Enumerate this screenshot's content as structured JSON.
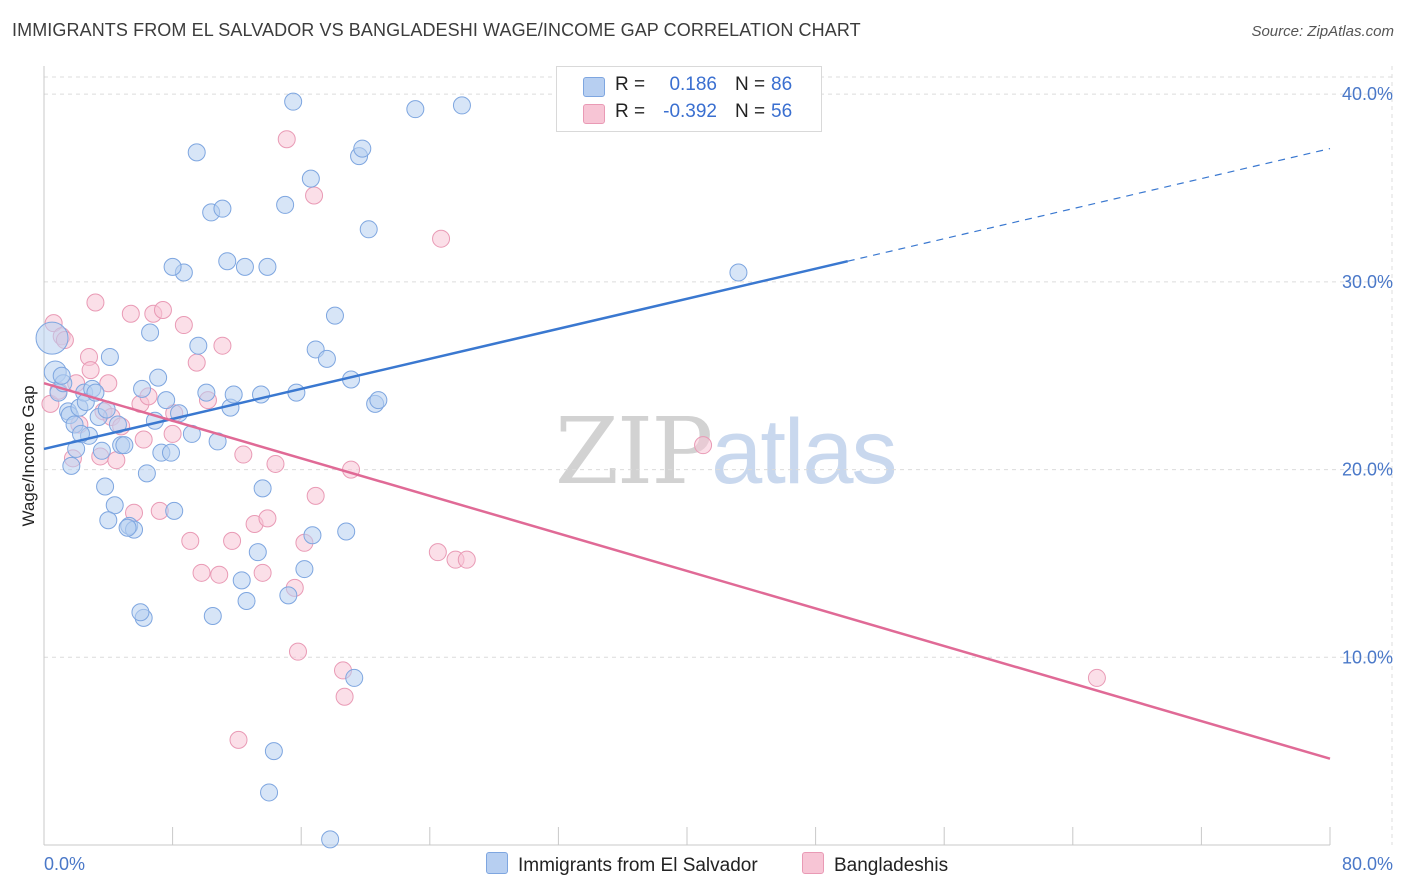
{
  "header": {
    "title": "IMMIGRANTS FROM EL SALVADOR VS BANGLADESHI WAGE/INCOME GAP CORRELATION CHART",
    "source": "Source: ZipAtlas.com"
  },
  "watermark": {
    "zip": "ZIP",
    "atlas": "atlas"
  },
  "legend_top": {
    "rows": [
      {
        "r_label": "R =",
        "r_value": "0.186",
        "n_label": "N =",
        "n_value": "86"
      },
      {
        "r_label": "R =",
        "r_value": "-0.392",
        "n_label": "N =",
        "n_value": "56"
      }
    ]
  },
  "legend_bottom": {
    "items": [
      {
        "label": "Immigrants from El Salvador"
      },
      {
        "label": "Bangladeshis"
      }
    ]
  },
  "colors": {
    "blue_fill": "#b7cff1",
    "blue_stroke": "#7ea6e0",
    "blue_line": "#3a78d0",
    "pink_fill": "#f7c5d5",
    "pink_stroke": "#e99ab5",
    "pink_line": "#e06a96",
    "grid": "#dcdcdc",
    "axis_text": "#4a78c8"
  },
  "chart_data": {
    "type": "scatter",
    "title": "IMMIGRANTS FROM EL SALVADOR VS BANGLADESHI WAGE/INCOME GAP CORRELATION CHART",
    "xlabel": "",
    "ylabel": "Wage/Income Gap",
    "xlim": [
      0,
      80
    ],
    "ylim": [
      0,
      41.5
    ],
    "x_ticks": [
      "0.0%",
      "80.0%"
    ],
    "y_ticks": [
      {
        "value": 10,
        "label": "10.0%"
      },
      {
        "value": 20,
        "label": "20.0%"
      },
      {
        "value": 30,
        "label": "30.0%"
      },
      {
        "value": 40,
        "label": "40.0%"
      }
    ],
    "grid": true,
    "legend_position": "top-center",
    "series": [
      {
        "name": "Immigrants from El Salvador",
        "color": "#7ea6e0",
        "r": 0.186,
        "n": 86,
        "trend": {
          "x": [
            0,
            50
          ],
          "y": [
            21.1,
            31.1
          ],
          "extended_to": [
            80,
            37.1
          ]
        },
        "points": [
          [
            0.5,
            27.0
          ],
          [
            0.7,
            25.2
          ],
          [
            0.9,
            24.1
          ],
          [
            1.2,
            24.6
          ],
          [
            1.5,
            23.1
          ],
          [
            1.6,
            22.9
          ],
          [
            1.9,
            22.4
          ],
          [
            1.7,
            20.2
          ],
          [
            2.0,
            21.1
          ],
          [
            2.2,
            23.3
          ],
          [
            2.5,
            24.1
          ],
          [
            2.6,
            23.6
          ],
          [
            2.8,
            21.8
          ],
          [
            3.0,
            24.3
          ],
          [
            3.2,
            24.1
          ],
          [
            3.4,
            22.8
          ],
          [
            3.6,
            21.0
          ],
          [
            3.9,
            23.2
          ],
          [
            4.1,
            26.0
          ],
          [
            4.4,
            18.1
          ],
          [
            4.6,
            22.4
          ],
          [
            4.8,
            21.3
          ],
          [
            5.0,
            21.3
          ],
          [
            5.3,
            17.0
          ],
          [
            5.6,
            16.8
          ],
          [
            6.1,
            24.3
          ],
          [
            6.4,
            19.8
          ],
          [
            6.6,
            27.3
          ],
          [
            6.9,
            22.6
          ],
          [
            7.1,
            24.9
          ],
          [
            7.3,
            20.9
          ],
          [
            7.6,
            23.7
          ],
          [
            7.9,
            20.9
          ],
          [
            8.1,
            17.8
          ],
          [
            8.4,
            23.0
          ],
          [
            8.7,
            30.5
          ],
          [
            8.0,
            30.8
          ],
          [
            9.2,
            21.9
          ],
          [
            9.6,
            26.6
          ],
          [
            9.5,
            36.9
          ],
          [
            10.1,
            24.1
          ],
          [
            10.4,
            33.7
          ],
          [
            10.5,
            12.2
          ],
          [
            10.8,
            21.5
          ],
          [
            11.1,
            33.9
          ],
          [
            11.4,
            31.1
          ],
          [
            11.6,
            23.3
          ],
          [
            11.8,
            24.0
          ],
          [
            12.3,
            14.1
          ],
          [
            12.5,
            30.8
          ],
          [
            12.6,
            13.0
          ],
          [
            13.3,
            15.6
          ],
          [
            13.5,
            24.0
          ],
          [
            13.6,
            19.0
          ],
          [
            13.9,
            30.8
          ],
          [
            14.3,
            5.0
          ],
          [
            14.0,
            2.8
          ],
          [
            15.0,
            34.1
          ],
          [
            15.2,
            13.3
          ],
          [
            15.5,
            39.6
          ],
          [
            15.7,
            24.1
          ],
          [
            16.2,
            14.7
          ],
          [
            16.6,
            35.5
          ],
          [
            16.7,
            16.5
          ],
          [
            16.9,
            26.4
          ],
          [
            17.6,
            25.9
          ],
          [
            17.8,
            0.3
          ],
          [
            18.1,
            28.2
          ],
          [
            18.8,
            16.7
          ],
          [
            19.1,
            24.8
          ],
          [
            19.3,
            8.9
          ],
          [
            19.6,
            36.7
          ],
          [
            19.8,
            37.1
          ],
          [
            20.2,
            32.8
          ],
          [
            20.6,
            23.5
          ],
          [
            20.8,
            23.7
          ],
          [
            23.1,
            39.2
          ],
          [
            26.0,
            39.4
          ],
          [
            43.2,
            30.5
          ],
          [
            4.0,
            17.3
          ],
          [
            5.2,
            16.9
          ],
          [
            6.2,
            12.1
          ],
          [
            1.1,
            25.0
          ],
          [
            2.3,
            21.9
          ],
          [
            3.8,
            19.1
          ],
          [
            6.0,
            12.4
          ]
        ]
      },
      {
        "name": "Bangladeshis",
        "color": "#e99ab5",
        "r": -0.392,
        "n": 56,
        "trend": {
          "x": [
            0,
            80
          ],
          "y": [
            24.6,
            4.6
          ]
        },
        "points": [
          [
            0.4,
            23.5
          ],
          [
            0.6,
            27.8
          ],
          [
            0.9,
            24.2
          ],
          [
            1.1,
            27.1
          ],
          [
            1.3,
            26.9
          ],
          [
            1.8,
            20.6
          ],
          [
            2.0,
            24.6
          ],
          [
            2.2,
            22.4
          ],
          [
            2.8,
            26.0
          ],
          [
            2.9,
            25.3
          ],
          [
            3.2,
            28.9
          ],
          [
            3.5,
            20.7
          ],
          [
            3.7,
            23.1
          ],
          [
            4.0,
            24.6
          ],
          [
            4.2,
            22.8
          ],
          [
            4.5,
            20.5
          ],
          [
            4.8,
            22.3
          ],
          [
            5.4,
            28.3
          ],
          [
            5.6,
            17.7
          ],
          [
            6.0,
            23.5
          ],
          [
            6.2,
            21.6
          ],
          [
            6.5,
            23.9
          ],
          [
            6.8,
            28.3
          ],
          [
            7.2,
            17.8
          ],
          [
            7.4,
            28.5
          ],
          [
            8.0,
            21.9
          ],
          [
            8.1,
            23.0
          ],
          [
            8.7,
            27.7
          ],
          [
            9.1,
            16.2
          ],
          [
            9.5,
            25.7
          ],
          [
            9.8,
            14.5
          ],
          [
            10.2,
            23.7
          ],
          [
            10.9,
            14.4
          ],
          [
            11.1,
            26.6
          ],
          [
            11.7,
            16.2
          ],
          [
            12.1,
            5.6
          ],
          [
            12.4,
            20.8
          ],
          [
            13.1,
            17.1
          ],
          [
            13.6,
            14.5
          ],
          [
            13.9,
            17.4
          ],
          [
            14.4,
            20.3
          ],
          [
            15.1,
            37.6
          ],
          [
            15.6,
            13.7
          ],
          [
            15.8,
            10.3
          ],
          [
            16.2,
            16.1
          ],
          [
            16.8,
            34.6
          ],
          [
            16.9,
            18.6
          ],
          [
            18.6,
            9.3
          ],
          [
            18.7,
            7.9
          ],
          [
            19.1,
            20.0
          ],
          [
            24.5,
            15.6
          ],
          [
            24.7,
            32.3
          ],
          [
            25.6,
            15.2
          ],
          [
            26.3,
            15.2
          ],
          [
            41.0,
            21.3
          ],
          [
            65.5,
            8.9
          ]
        ]
      }
    ]
  }
}
